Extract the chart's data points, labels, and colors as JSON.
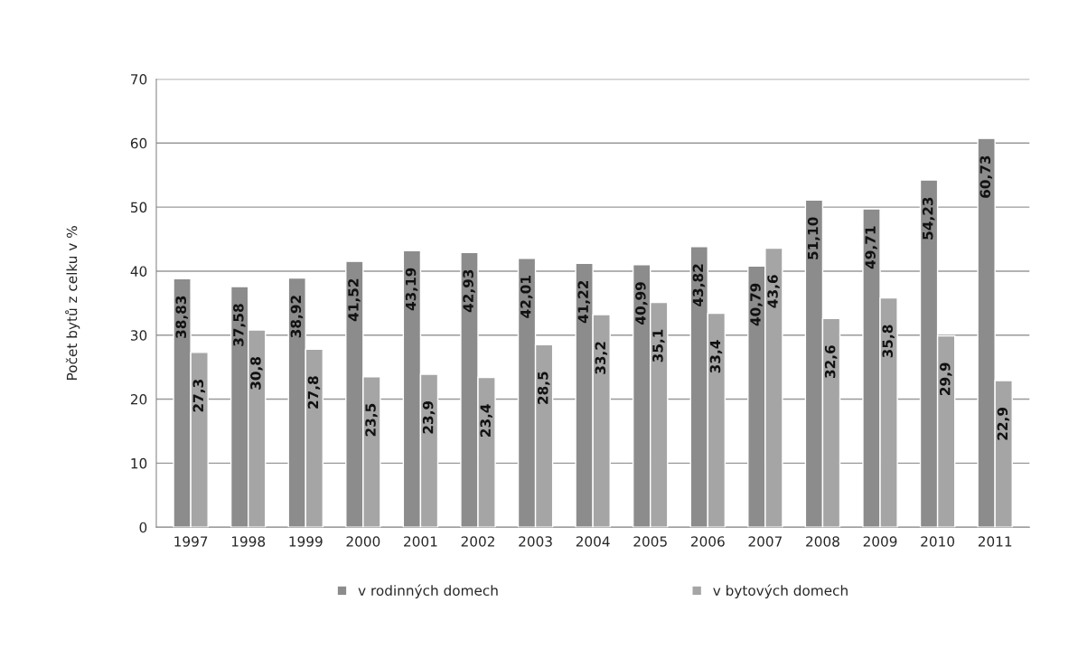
{
  "chart_data": {
    "type": "bar",
    "ylabel": "Počet bytů z celku v %",
    "categories": [
      "1997",
      "1998",
      "1999",
      "2000",
      "2001",
      "2002",
      "2003",
      "2004",
      "2005",
      "2006",
      "2007",
      "2008",
      "2009",
      "2010",
      "2011"
    ],
    "series": [
      {
        "name": "v rodinných domech",
        "color": "#8c8c8c",
        "values": [
          38.83,
          37.58,
          38.92,
          41.52,
          43.19,
          42.93,
          42.01,
          41.22,
          40.99,
          43.82,
          40.79,
          51.1,
          49.71,
          54.23,
          60.73
        ],
        "value_labels": [
          "38,83",
          "37,58",
          "38,92",
          "41,52",
          "43,19",
          "42,93",
          "42,01",
          "41,22",
          "40,99",
          "43,82",
          "40,79",
          "51,10",
          "49,71",
          "54,23",
          "60,73"
        ]
      },
      {
        "name": "v bytových domech",
        "color": "#a5a5a5",
        "values": [
          27.3,
          30.8,
          27.8,
          23.5,
          23.9,
          23.4,
          28.5,
          33.2,
          35.1,
          33.4,
          43.6,
          32.6,
          35.8,
          29.9,
          22.9
        ],
        "value_labels": [
          "27,3",
          "30,8",
          "27,8",
          "23,5",
          "23,9",
          "23,4",
          "28,5",
          "33,2",
          "35,1",
          "33,4",
          "43,6",
          "32,6",
          "35,8",
          "29,9",
          "22,9"
        ]
      }
    ],
    "ylim": [
      0,
      70
    ],
    "yticks": [
      0,
      10,
      20,
      30,
      40,
      50,
      60,
      70
    ],
    "grid": "y",
    "legend": "bottom"
  }
}
